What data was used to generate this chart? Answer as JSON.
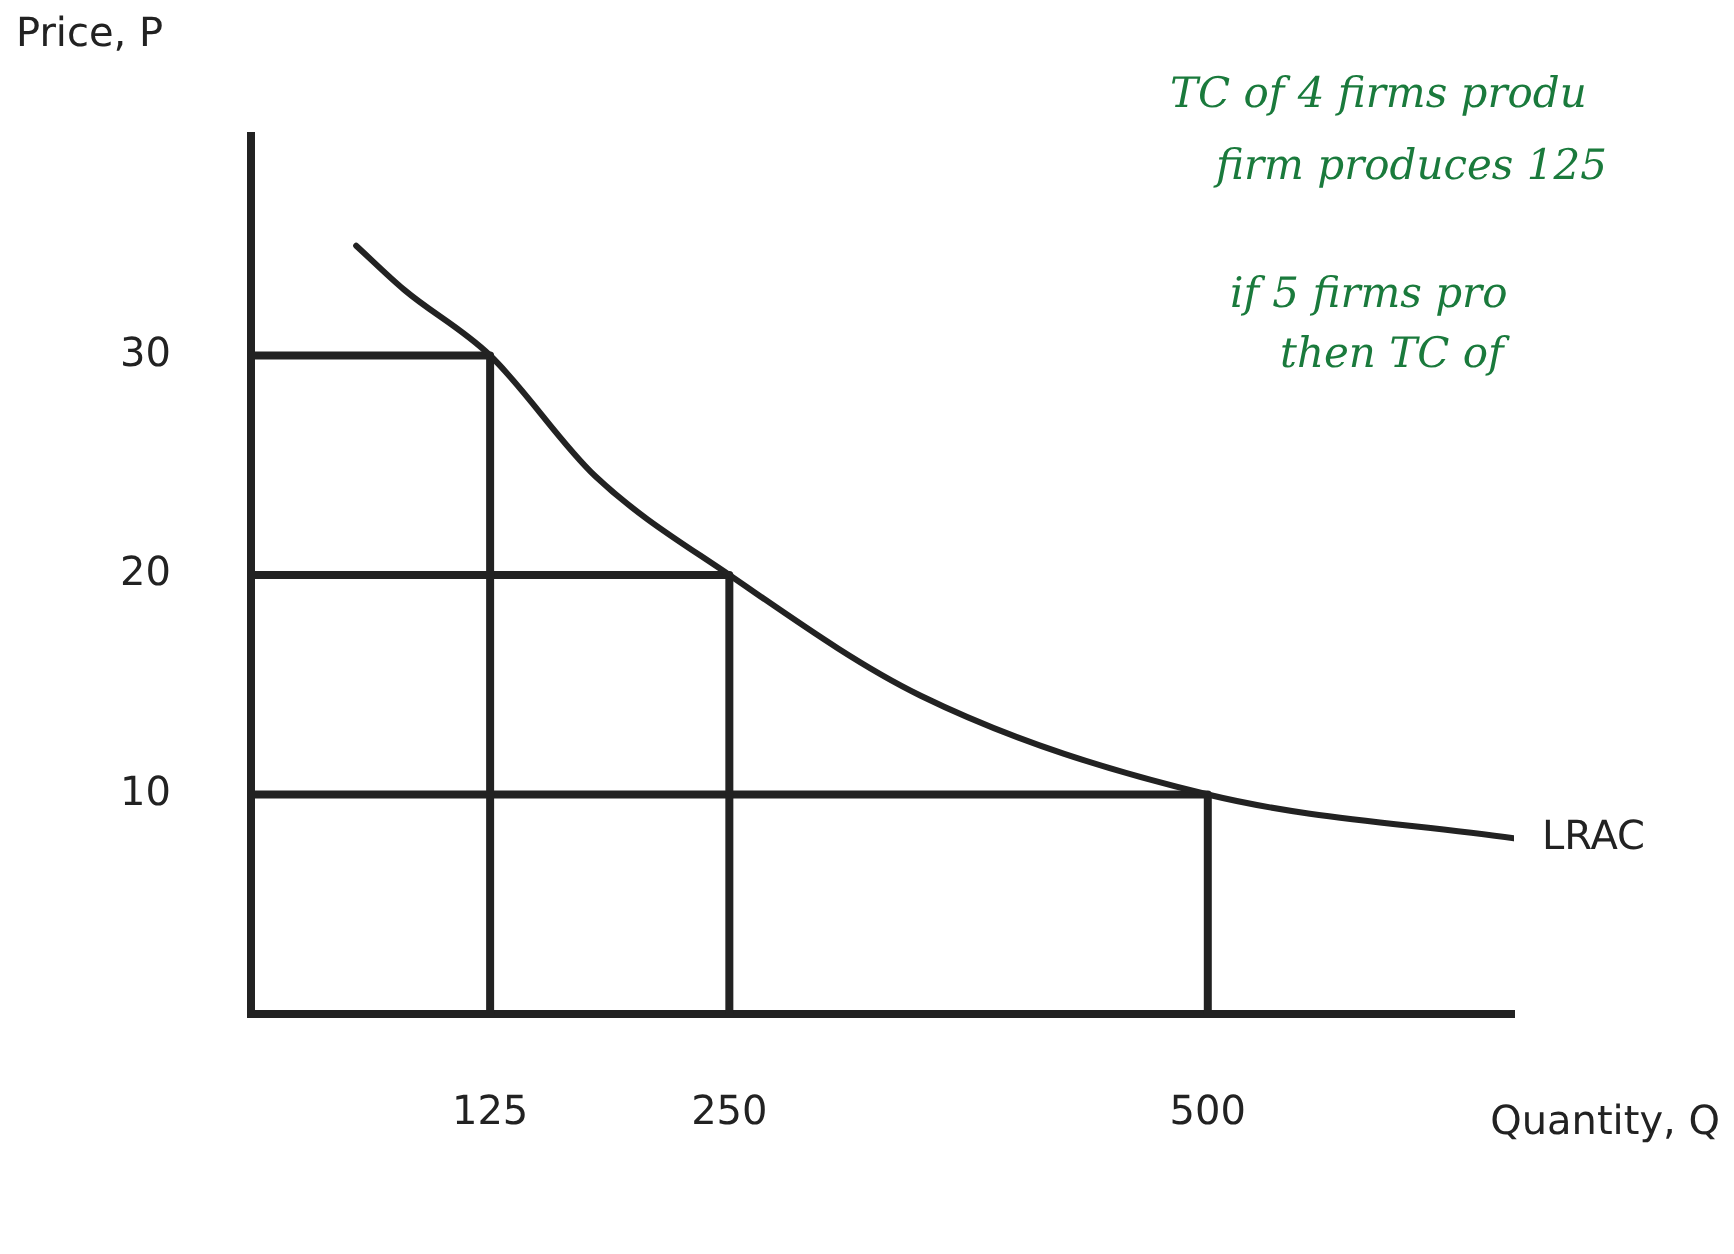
{
  "chart_data": {
    "type": "line",
    "xlabel": "Quantity, Q",
    "ylabel": "Price, P",
    "annotations": [
      "TC of 4 firms produ",
      "firm produces 125",
      "if 5 firms pro",
      "then TC of"
    ],
    "xlim": [
      0,
      660
    ],
    "xticks": [
      125,
      250,
      500
    ],
    "ylim": [
      0,
      40
    ],
    "yticks": [
      10,
      20,
      30
    ],
    "grid": false,
    "legend": false,
    "marker": "none",
    "line_style": "solid",
    "series": [
      {
        "name": "LRAC",
        "color": "#222222",
        "x": [
          55,
          80,
          125,
          180,
          250,
          350,
          500,
          660
        ],
        "values": [
          35,
          33,
          30,
          24.5,
          20,
          14.5,
          10,
          8
        ]
      },
      {
        "color": "#222222",
        "x": [
          0,
          125,
          125
        ],
        "values": [
          30,
          30,
          0
        ]
      },
      {
        "color": "#222222",
        "x": [
          0,
          250,
          250
        ],
        "values": [
          20,
          20,
          0
        ]
      },
      {
        "color": "#222222",
        "x": [
          0,
          500,
          500
        ],
        "values": [
          10,
          10,
          0
        ]
      }
    ]
  }
}
